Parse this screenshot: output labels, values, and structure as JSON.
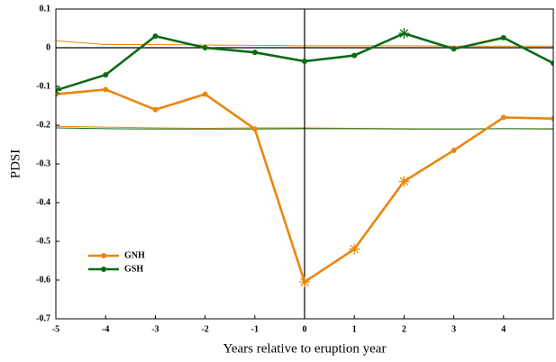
{
  "chart_data": {
    "type": "line",
    "x_label": "Years relative to eruption year",
    "y_label": "PDSI",
    "x": [
      -5,
      -4,
      -3,
      -2,
      -1,
      0,
      1,
      2,
      3,
      4,
      5
    ],
    "series": [
      {
        "name": "GNH",
        "color": "#e8870e",
        "values": [
          -0.12,
          -0.108,
          -0.16,
          -0.12,
          -0.21,
          -0.605,
          -0.52,
          -0.345,
          -0.265,
          -0.18,
          -0.183
        ],
        "markers": [
          "o",
          "o",
          "o",
          "o",
          "o",
          "*",
          "*",
          "*",
          "o",
          "o",
          "o"
        ]
      },
      {
        "name": "GSH",
        "color": "#0b6b14",
        "values": [
          -0.11,
          -0.07,
          0.03,
          0.0,
          -0.012,
          -0.035,
          -0.02,
          0.037,
          -0.003,
          0.026,
          -0.04
        ],
        "markers": [
          "*",
          "o",
          "o",
          "o",
          "o",
          "o",
          "o",
          "*",
          "o",
          "o",
          "o"
        ]
      }
    ],
    "reference_lines": [
      {
        "color": "#e8870e",
        "values": [
          0.018,
          0.008,
          0.008,
          0.007,
          0.006,
          0.005,
          0.005,
          0.005,
          0.004,
          0.004,
          0.004
        ]
      },
      {
        "color": "#e8870e",
        "values": [
          -0.203,
          -0.205,
          -0.207,
          -0.208,
          -0.207,
          -0.207,
          -0.208,
          -0.209,
          -0.21,
          -0.209,
          -0.209
        ]
      },
      {
        "color": "#0b6b14",
        "values": [
          -0.207,
          -0.209,
          -0.21,
          -0.21,
          -0.21,
          -0.209,
          -0.209,
          -0.21,
          -0.21,
          -0.209,
          -0.21
        ]
      }
    ],
    "xlim": [
      -5,
      5
    ],
    "ylim": [
      -0.7,
      0.1
    ],
    "xticks": [
      -5,
      -4,
      -3,
      -2,
      -1,
      0,
      1,
      2,
      3,
      4
    ],
    "yticks": [
      0.1,
      0,
      -0.1,
      -0.2,
      -0.3,
      -0.4,
      -0.5,
      -0.6,
      -0.7
    ],
    "zero_lines": true,
    "legend": "lower left"
  }
}
